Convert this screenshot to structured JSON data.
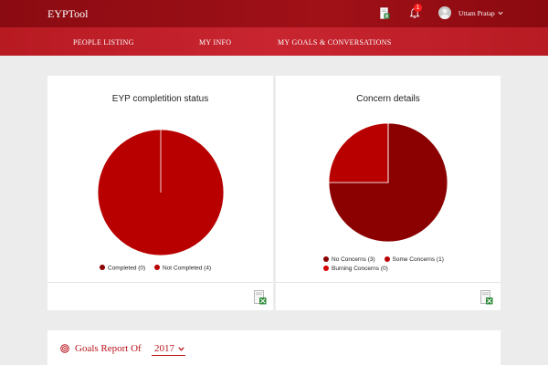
{
  "header": {
    "brand": "EYPTool",
    "notification_count": "1",
    "user_name": "Uttam Pratap",
    "icons": {
      "excel": "excel-export-icon",
      "bell": "bell-icon",
      "user": "user-avatar-icon",
      "caret": "chevron-down-icon"
    }
  },
  "nav": {
    "items": [
      {
        "label": "PEOPLE LISTING"
      },
      {
        "label": "MY INFO"
      },
      {
        "label": "MY GOALS & CONVERSATIONS"
      }
    ]
  },
  "colors": {
    "header_bg": "#8b0b12",
    "nav_bg": "#c0212a",
    "accent": "#b8121b",
    "dark_red": "#8b0000",
    "red": "#b80000",
    "bright_red": "#d40000"
  },
  "chart_data": [
    {
      "type": "pie",
      "title": "EYP completition status",
      "series": [
        {
          "name": "Completed",
          "value": 0,
          "color": "#8b0000"
        },
        {
          "name": "Not Completed",
          "value": 4,
          "color": "#b80000"
        }
      ],
      "legend": [
        "Completed (0)",
        "Not Completed (4)"
      ],
      "legend_position": "bottom"
    },
    {
      "type": "pie",
      "title": "Concern details",
      "series": [
        {
          "name": "No Concerns",
          "value": 3,
          "color": "#8b0000"
        },
        {
          "name": "Some Concerns",
          "value": 1,
          "color": "#b80000"
        },
        {
          "name": "Burning Concerns",
          "value": 0,
          "color": "#d40000"
        }
      ],
      "legend": [
        "No Concerns (3)",
        "Some Concerns (1)",
        "Burning Concerns (0)"
      ],
      "legend_position": "bottom"
    }
  ],
  "goals": {
    "title": "Goals Report Of",
    "year": "2017"
  }
}
